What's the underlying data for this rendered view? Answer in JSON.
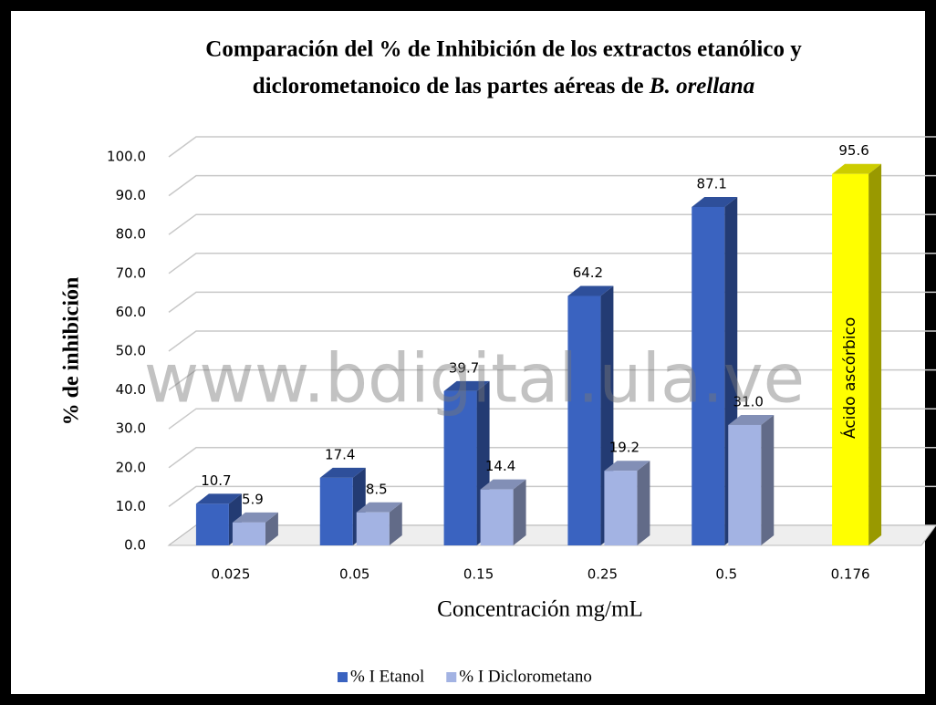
{
  "chart_data": {
    "type": "bar3d",
    "title": [
      "Comparación del % de Inhibición de los extractos etanólico y",
      "diclorometanoico de las partes aéreas de",
      "B. orellana"
    ],
    "xlabel": "Concentración mg/mL",
    "ylabel": "% de inhibición",
    "watermark": "www.bdigital.ula.ve",
    "categories": [
      "0.025",
      "0.05",
      "0.15",
      "0.25",
      "0.5",
      "0.176"
    ],
    "series": [
      {
        "name": "% I Etanol",
        "color": "#3a63c0",
        "values": [
          10.7,
          17.4,
          39.7,
          64.2,
          87.1,
          95.6
        ],
        "value_labels": [
          "10.7",
          "17.4",
          "39.7",
          "64.2",
          "87.1",
          "95.6"
        ]
      },
      {
        "name": "% I Diclorometano",
        "color": "#a3b3e3",
        "values": [
          5.9,
          8.5,
          14.4,
          19.2,
          31.0,
          null
        ],
        "value_labels": [
          "5.9",
          "8.5",
          "14.4",
          "19.2",
          "31.0",
          null
        ]
      }
    ],
    "highlight": {
      "index": 5,
      "color": "#ffff00",
      "label": "Ácido ascórbico"
    },
    "ylim": [
      0,
      100
    ],
    "yticks": [
      {
        "value": 0,
        "label": "0.0"
      },
      {
        "value": 10,
        "label": "10.0"
      },
      {
        "value": 20,
        "label": "20.0"
      },
      {
        "value": 30,
        "label": "30.0"
      },
      {
        "value": 40,
        "label": "40.0"
      },
      {
        "value": 50,
        "label": "50.0"
      },
      {
        "value": 60,
        "label": "60.0"
      },
      {
        "value": 70,
        "label": "70.0"
      },
      {
        "value": 80,
        "label": "80.0"
      },
      {
        "value": 90,
        "label": "90.0"
      },
      {
        "value": 100,
        "label": "100.0"
      }
    ],
    "grid": true,
    "legend": "bottom"
  }
}
